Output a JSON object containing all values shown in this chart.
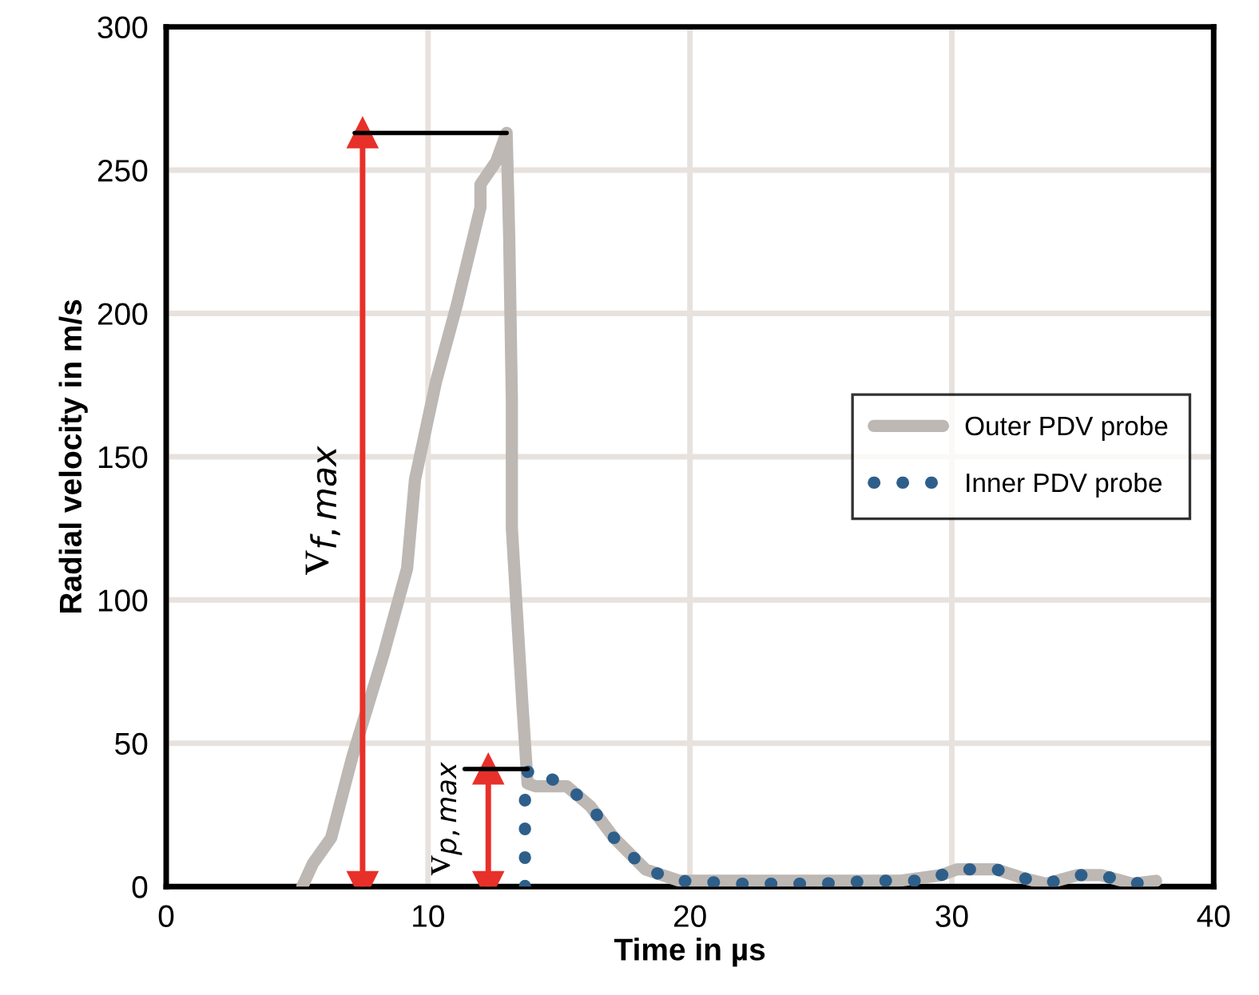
{
  "chart_data": {
    "type": "line",
    "xlabel": "Time in µs",
    "ylabel": "Radial velocity in m/s",
    "xlim": [
      0,
      40
    ],
    "xticks": [
      0,
      10,
      20,
      30,
      40
    ],
    "ylim": [
      0,
      300
    ],
    "yticks": [
      0,
      50,
      100,
      150,
      200,
      250,
      300
    ],
    "grid": true,
    "legend": "right",
    "series": [
      {
        "name": "Outer PDV probe",
        "color": "#bdb8b4",
        "line_style": "solid",
        "x": [
          5.2,
          5.6,
          6.3,
          7.1,
          8.3,
          9.2,
          9.5,
          10.3,
          11.1,
          12.0,
          12.0,
          12.6,
          13.0,
          13.1,
          13.2,
          13.2,
          13.6,
          13.8,
          14.1,
          15.3,
          16.2,
          17.1,
          18.3,
          19.6,
          22,
          25,
          28,
          29.6,
          30.2,
          31.7,
          32.7,
          33.6,
          34.8,
          35.7,
          36.9,
          37.8
        ],
        "values": [
          0,
          8,
          17,
          45,
          81,
          111,
          142,
          176,
          203,
          237,
          245,
          253,
          263,
          226,
          170,
          125,
          64,
          36,
          35,
          35,
          28,
          17,
          6,
          2,
          2,
          2,
          2,
          4,
          6,
          6,
          3,
          1,
          4,
          4,
          1,
          2
        ]
      },
      {
        "name": "Inner PDV probe",
        "color": "#2e5f8a",
        "line_style": "dotted",
        "x": [
          13.7,
          13.7,
          13.8,
          14.2,
          14.6,
          15.3,
          16.2,
          17.1,
          18.3,
          19.6,
          22,
          25,
          27,
          29,
          30.2,
          31.7,
          32.7,
          33.6,
          34.8,
          35.7,
          36.9,
          37.8
        ],
        "values": [
          0,
          30,
          40,
          41,
          38,
          35,
          28,
          17,
          6,
          2,
          1,
          1,
          2,
          2,
          6,
          6,
          3,
          1,
          4,
          4,
          1,
          2
        ]
      },
      {
        "color": "#e8302a",
        "line_style": "solid",
        "marker": "triangle",
        "x": [
          7.5,
          7.5
        ],
        "values": [
          0,
          263
        ]
      },
      {
        "color": "#000000",
        "line_style": "solid",
        "x": [
          7.2,
          13.0
        ],
        "values": [
          263,
          263
        ]
      },
      {
        "color": "#e8302a",
        "line_style": "solid",
        "marker": "triangle",
        "x": [
          12.3,
          12.3
        ],
        "values": [
          0,
          41
        ]
      },
      {
        "color": "#000000",
        "line_style": "solid",
        "x": [
          11.4,
          13.8
        ],
        "values": [
          41,
          41
        ]
      }
    ],
    "annotations": [
      "v$_{f,max}$",
      "v$_{p,max}$"
    ]
  }
}
